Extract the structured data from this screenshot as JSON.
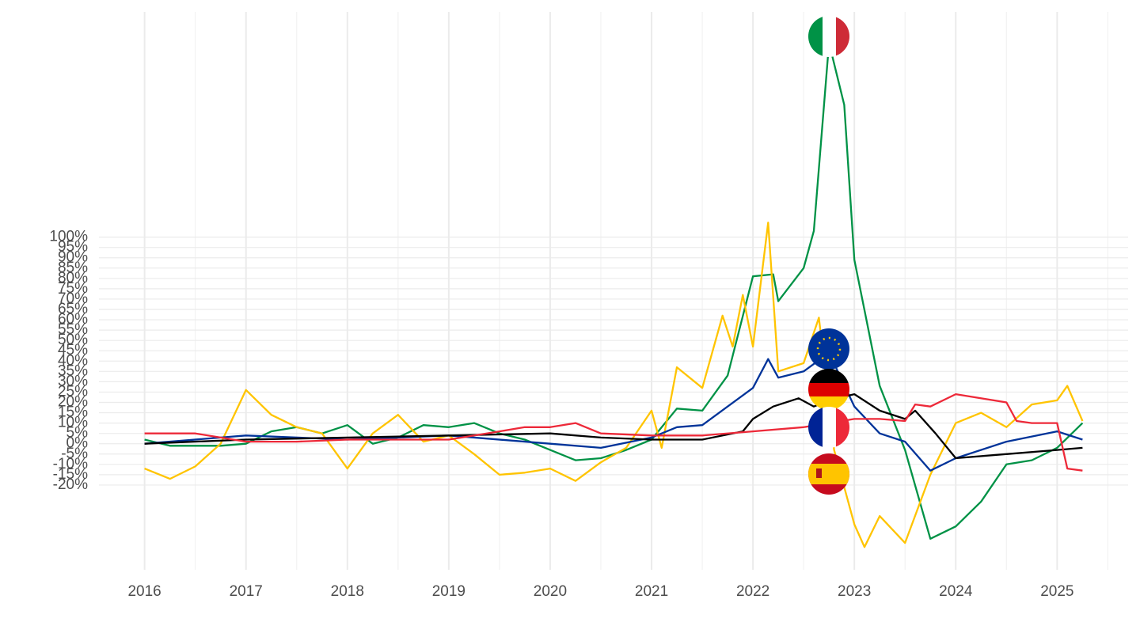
{
  "chart_data": {
    "type": "line",
    "xlim": [
      2015.55,
      2025.7
    ],
    "xticks": [
      2016,
      2017,
      2018,
      2019,
      2020,
      2021,
      2022,
      2023,
      2024,
      2025
    ],
    "ylim": [
      -61,
      209
    ],
    "yticks": [
      {
        "value": -20,
        "label": "-20%"
      },
      {
        "value": -15,
        "label": "-15%"
      },
      {
        "value": -10,
        "label": "-10%"
      },
      {
        "value": -5,
        "label": "-5%"
      },
      {
        "value": 0,
        "label": "0%"
      },
      {
        "value": 5,
        "label": "5%"
      },
      {
        "value": 10,
        "label": "10%"
      },
      {
        "value": 15,
        "label": "15%"
      },
      {
        "value": 20,
        "label": "20%"
      },
      {
        "value": 25,
        "label": "25%"
      },
      {
        "value": 30,
        "label": "30%"
      },
      {
        "value": 35,
        "label": "35%"
      },
      {
        "value": 40,
        "label": "40%"
      },
      {
        "value": 45,
        "label": "45%"
      },
      {
        "value": 50,
        "label": "50%"
      },
      {
        "value": 55,
        "label": "55%"
      },
      {
        "value": 60,
        "label": "60%"
      },
      {
        "value": 65,
        "label": "65%"
      },
      {
        "value": 70,
        "label": "70%"
      },
      {
        "value": 75,
        "label": "75%"
      },
      {
        "value": 80,
        "label": "80%"
      },
      {
        "value": 85,
        "label": "85%"
      },
      {
        "value": 90,
        "label": "90%"
      },
      {
        "value": 95,
        "label": "95%"
      },
      {
        "value": 100,
        "label": "100%"
      }
    ],
    "grid": true,
    "series": [
      {
        "color": "#009246",
        "x": [
          2016,
          2016.25,
          2016.5,
          2016.75,
          2017,
          2017.25,
          2017.5,
          2017.75,
          2018,
          2018.25,
          2018.5,
          2018.75,
          2019,
          2019.25,
          2019.5,
          2019.75,
          2020,
          2020.25,
          2020.5,
          2020.75,
          2021,
          2021.25,
          2021.5,
          2021.75,
          2022,
          2022.2,
          2022.25,
          2022.5,
          2022.6,
          2022.75,
          2022.9,
          2023,
          2023.25,
          2023.5,
          2023.75,
          2024,
          2024.25,
          2024.5,
          2024.75,
          2025,
          2025.25
        ],
        "values": [
          2,
          -1,
          -1,
          -1,
          0,
          6,
          8,
          5,
          9,
          0,
          3,
          9,
          8,
          10,
          5,
          2,
          -3,
          -8,
          -7,
          -3,
          2,
          17,
          16,
          33,
          81,
          82,
          69,
          85,
          103,
          194,
          164,
          89,
          28,
          -3,
          -46,
          -40,
          -28,
          -10,
          -8,
          -2,
          10
        ]
      },
      {
        "color": "#ffc400",
        "x": [
          2016,
          2016.25,
          2016.5,
          2016.75,
          2017,
          2017.25,
          2017.5,
          2017.75,
          2018,
          2018.25,
          2018.5,
          2018.75,
          2019,
          2019.25,
          2019.5,
          2019.75,
          2020,
          2020.25,
          2020.5,
          2020.75,
          2021,
          2021.1,
          2021.25,
          2021.5,
          2021.7,
          2021.8,
          2021.9,
          2022,
          2022.15,
          2022.25,
          2022.5,
          2022.65,
          2022.8,
          2023,
          2023.1,
          2023.25,
          2023.5,
          2023.75,
          2024,
          2024.25,
          2024.5,
          2024.75,
          2025,
          2025.1,
          2025.25
        ],
        "values": [
          -12,
          -17,
          -11,
          0,
          26,
          14,
          8,
          5,
          -12,
          5,
          14,
          1,
          4,
          -5,
          -15,
          -14,
          -12,
          -18,
          -9,
          -2,
          16,
          -2,
          37,
          27,
          62,
          47,
          72,
          47,
          107,
          35,
          39,
          61,
          -3,
          -39,
          -50,
          -35,
          -48,
          -15,
          10,
          15,
          8,
          19,
          21,
          28,
          11
        ]
      },
      {
        "color": "#003399",
        "x": [
          2016,
          2017,
          2018,
          2019,
          2020,
          2020.5,
          2021,
          2021.25,
          2021.5,
          2021.75,
          2022,
          2022.15,
          2022.25,
          2022.5,
          2022.75,
          2023,
          2023.25,
          2023.5,
          2023.75,
          2024,
          2024.5,
          2025,
          2025.25
        ],
        "values": [
          0,
          4,
          2,
          4,
          0,
          -2,
          3,
          8,
          9,
          18,
          27,
          41,
          32,
          35,
          44,
          18,
          5,
          1,
          -13,
          -7,
          1,
          6,
          2
        ]
      },
      {
        "color": "#000000",
        "x": [
          2016,
          2017,
          2018,
          2019,
          2020,
          2020.5,
          2021,
          2021.5,
          2021.9,
          2022,
          2022.2,
          2022.45,
          2022.6,
          2022.75,
          2023,
          2023.25,
          2023.5,
          2023.6,
          2023.8,
          2024,
          2024.5,
          2025,
          2025.25
        ],
        "values": [
          0,
          2,
          3,
          4,
          5,
          3,
          2,
          2,
          6,
          12,
          18,
          22,
          18,
          21,
          24,
          16,
          12,
          16,
          5,
          -7,
          -5,
          -3,
          -2
        ]
      },
      {
        "color": "#ed2939",
        "x": [
          2016,
          2016.5,
          2016.75,
          2017,
          2017.5,
          2018,
          2019,
          2019.5,
          2019.75,
          2020,
          2020.25,
          2020.5,
          2021,
          2021.5,
          2022,
          2022.5,
          2022.75,
          2023,
          2023.25,
          2023.5,
          2023.6,
          2023.75,
          2024,
          2024.5,
          2024.6,
          2024.75,
          2025,
          2025.1,
          2025.25
        ],
        "values": [
          5,
          5,
          3,
          1,
          1,
          2,
          2,
          6,
          8,
          8,
          10,
          5,
          4,
          4,
          6,
          8,
          10,
          12,
          12,
          11,
          19,
          18,
          24,
          20,
          11,
          10,
          10,
          -12,
          -13
        ]
      }
    ]
  }
}
